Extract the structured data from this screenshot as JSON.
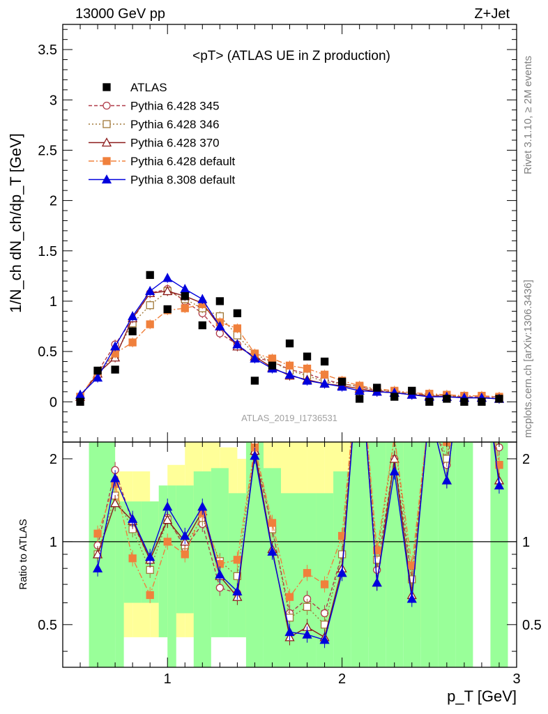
{
  "header": {
    "energy_label": "13000 GeV pp",
    "process_label": "Z+Jet"
  },
  "side_labels": {
    "rivet": "Rivet 3.1.10, ≥ 2M events",
    "mcplots": "mcplots.cern.ch [arXiv:1306.3436]"
  },
  "chart_data": {
    "type": "line",
    "title": "<pT> (ATLAS UE in Z production)",
    "analysis_tag": "ATLAS_2019_I1736531",
    "xlabel": "p_T [GeV]",
    "ylabel": "1/N_ch dN_ch/dp_T [GeV]",
    "ratio_ylabel": "Ratio to ATLAS",
    "xlim": [
      0.4,
      3.0
    ],
    "ylim": [
      -0.4,
      3.75
    ],
    "ratio_ylim": [
      0.35,
      2.3
    ],
    "ratio_log": true,
    "x_ticks": [
      1,
      2,
      3
    ],
    "y_ticks": [
      0,
      0.5,
      1,
      1.5,
      2,
      2.5,
      3,
      3.5
    ],
    "y_tick_labels": [
      "0",
      "0.5",
      "1",
      "1.5",
      "2",
      "2.5",
      "3",
      "3.5"
    ],
    "ratio_ticks": [
      0.5,
      1,
      2
    ],
    "ratio_tick_labels": [
      "0.5",
      "1",
      "2"
    ],
    "legend_position": "top-left",
    "x": [
      0.5,
      0.6,
      0.7,
      0.8,
      0.9,
      1.0,
      1.1,
      1.2,
      1.3,
      1.4,
      1.5,
      1.6,
      1.7,
      1.8,
      1.9,
      2.0,
      2.1,
      2.2,
      2.3,
      2.4,
      2.5,
      2.6,
      2.7,
      2.8,
      2.9
    ],
    "series": [
      {
        "name": "ATLAS",
        "color": "#000000",
        "marker": "square-filled",
        "values": [
          0.0,
          0.31,
          0.32,
          0.7,
          1.26,
          0.92,
          1.05,
          0.76,
          1.0,
          0.88,
          0.21,
          0.36,
          0.58,
          0.45,
          0.4,
          0.2,
          0.03,
          0.14,
          0.05,
          0.11,
          0.0,
          0.03,
          0.0,
          0.0,
          0.03
        ]
      },
      {
        "name": "Pythia 6.428 345",
        "color": "#b03a48",
        "marker": "circle-open",
        "dash": "5,3",
        "values": [
          0.05,
          0.3,
          0.57,
          0.82,
          1.08,
          1.12,
          1.0,
          0.88,
          0.68,
          0.57,
          0.44,
          0.4,
          0.32,
          0.28,
          0.22,
          0.18,
          0.15,
          0.11,
          0.1,
          0.08,
          0.07,
          0.06,
          0.05,
          0.05,
          0.05
        ]
      },
      {
        "name": "Pythia 6.428 346",
        "color": "#a07838",
        "marker": "square-open",
        "dash": "2,3",
        "values": [
          0.05,
          0.28,
          0.47,
          0.78,
          0.96,
          1.1,
          1.02,
          0.93,
          0.85,
          0.66,
          0.47,
          0.4,
          0.31,
          0.26,
          0.2,
          0.18,
          0.15,
          0.12,
          0.1,
          0.08,
          0.07,
          0.06,
          0.05,
          0.04,
          0.04
        ]
      },
      {
        "name": "Pythia 6.428 370",
        "color": "#8b1a1a",
        "marker": "triangle-open",
        "dash": "",
        "values": [
          0.05,
          0.28,
          0.44,
          0.83,
          1.08,
          1.1,
          1.05,
          0.98,
          0.75,
          0.55,
          0.45,
          0.34,
          0.26,
          0.22,
          0.18,
          0.16,
          0.13,
          0.1,
          0.09,
          0.07,
          0.06,
          0.05,
          0.04,
          0.04,
          0.03
        ]
      },
      {
        "name": "Pythia 6.428 default",
        "color": "#f0803c",
        "marker": "square-filled",
        "dash": "8,3,2,3",
        "values": [
          0.05,
          0.3,
          0.48,
          0.59,
          0.77,
          0.91,
          0.93,
          0.97,
          0.79,
          0.73,
          0.48,
          0.43,
          0.36,
          0.33,
          0.27,
          0.21,
          0.16,
          0.13,
          0.11,
          0.09,
          0.08,
          0.07,
          0.06,
          0.06,
          0.05
        ]
      },
      {
        "name": "Pythia 8.308 default",
        "color": "#0000dd",
        "marker": "triangle-filled",
        "dash": "",
        "values": [
          0.07,
          0.24,
          0.55,
          0.85,
          1.1,
          1.23,
          1.12,
          1.02,
          0.75,
          0.57,
          0.43,
          0.33,
          0.27,
          0.21,
          0.18,
          0.15,
          0.11,
          0.1,
          0.09,
          0.07,
          0.05,
          0.05,
          0.04,
          0.04,
          0.03
        ]
      }
    ],
    "ratio_series": [
      {
        "name": "Pythia 6.428 345",
        "values": [
          null,
          0.97,
          1.82,
          1.17,
          0.86,
          1.22,
          0.95,
          1.16,
          0.68,
          0.65,
          2.1,
          1.11,
          0.55,
          0.62,
          0.55,
          0.9,
          5.0,
          0.79,
          2.0,
          0.73,
          3.0,
          1.9,
          5.0,
          5.0,
          2.2
        ]
      },
      {
        "name": "Pythia 6.428 346",
        "values": [
          null,
          0.9,
          1.47,
          1.11,
          0.79,
          1.2,
          0.97,
          1.22,
          0.85,
          0.75,
          2.24,
          1.11,
          0.53,
          0.58,
          0.5,
          0.9,
          5.0,
          0.86,
          2.4,
          0.73,
          3.0,
          2.0,
          5.0,
          5.0,
          1.9
        ]
      },
      {
        "name": "Pythia 6.428 370",
        "values": [
          null,
          0.9,
          1.38,
          1.19,
          0.86,
          1.2,
          1.0,
          1.29,
          0.75,
          0.63,
          2.14,
          0.94,
          0.45,
          0.49,
          0.45,
          0.8,
          5.0,
          0.71,
          2.0,
          0.64,
          3.0,
          1.67,
          5.0,
          5.0,
          1.67
        ]
      },
      {
        "name": "Pythia 6.428 default",
        "values": [
          null,
          1.07,
          1.62,
          0.87,
          0.64,
          1.0,
          0.9,
          1.27,
          0.83,
          0.86,
          2.2,
          1.17,
          0.63,
          0.77,
          0.7,
          1.05,
          5.0,
          0.93,
          2.4,
          0.82,
          3.0,
          2.3,
          5.0,
          5.0,
          1.9
        ]
      },
      {
        "name": "Pythia 8.308 default",
        "values": [
          null,
          0.8,
          1.7,
          1.21,
          0.88,
          1.34,
          1.05,
          1.34,
          0.76,
          0.66,
          2.05,
          0.92,
          0.47,
          0.46,
          0.44,
          0.77,
          5.0,
          0.71,
          1.8,
          0.62,
          3.0,
          1.67,
          5.0,
          5.0,
          1.6
        ]
      }
    ],
    "ratio_bands": {
      "yellow_band": [
        [
          0.5,
          0.6,
          2.3,
          2.3
        ],
        [
          0.6,
          0.7,
          1.05,
          2.3
        ],
        [
          0.7,
          0.8,
          0.45,
          1.8
        ],
        [
          0.8,
          0.9,
          0.45,
          1.8
        ],
        [
          0.9,
          1.0,
          0.45,
          1.4
        ],
        [
          1.0,
          1.1,
          0.45,
          1.9
        ],
        [
          1.1,
          1.2,
          0.45,
          2.3
        ],
        [
          1.2,
          1.3,
          0.7,
          2.3
        ],
        [
          1.3,
          1.4,
          0.75,
          2.2
        ],
        [
          1.4,
          1.5,
          0.45,
          2.0
        ],
        [
          1.5,
          1.6,
          0.45,
          2.3
        ],
        [
          1.6,
          1.7,
          0.45,
          2.3
        ],
        [
          1.7,
          1.8,
          0.45,
          2.3
        ],
        [
          1.8,
          1.9,
          0.45,
          2.3
        ],
        [
          1.9,
          2.0,
          0.45,
          2.3
        ],
        [
          2.0,
          2.1,
          0.45,
          2.3
        ],
        [
          2.1,
          2.2,
          0.45,
          2.3
        ],
        [
          2.2,
          2.3,
          0.45,
          2.3
        ],
        [
          2.3,
          2.4,
          0.45,
          2.3
        ],
        [
          2.4,
          2.5,
          0.45,
          2.3
        ]
      ],
      "green_band": [
        [
          0.55,
          0.7,
          0.35,
          2.3
        ],
        [
          0.7,
          0.75,
          0.35,
          1.4
        ],
        [
          0.75,
          0.85,
          0.6,
          1.4
        ],
        [
          0.85,
          0.95,
          0.6,
          1.4
        ],
        [
          0.95,
          1.0,
          0.45,
          1.6
        ],
        [
          1.0,
          1.05,
          0.35,
          1.6
        ],
        [
          1.05,
          1.15,
          0.55,
          1.6
        ],
        [
          1.15,
          1.25,
          0.35,
          1.8
        ],
        [
          1.25,
          1.35,
          0.45,
          1.85
        ],
        [
          1.35,
          1.45,
          0.45,
          1.5
        ],
        [
          1.45,
          1.55,
          0.35,
          2.3
        ],
        [
          1.55,
          1.65,
          0.35,
          1.85
        ],
        [
          1.65,
          1.75,
          0.35,
          1.5
        ],
        [
          1.75,
          1.85,
          0.35,
          1.5
        ],
        [
          1.85,
          1.95,
          0.35,
          1.5
        ],
        [
          1.95,
          2.05,
          0.35,
          1.8
        ],
        [
          2.05,
          2.15,
          0.35,
          2.3
        ],
        [
          2.15,
          2.25,
          0.35,
          2.3
        ],
        [
          2.25,
          2.35,
          0.35,
          2.3
        ],
        [
          2.35,
          2.45,
          0.35,
          2.3
        ],
        [
          2.45,
          2.55,
          0.35,
          2.3
        ],
        [
          2.55,
          2.65,
          0.35,
          2.3
        ],
        [
          2.65,
          2.75,
          0.35,
          2.3
        ],
        [
          2.85,
          2.95,
          0.35,
          2.3
        ]
      ]
    }
  }
}
